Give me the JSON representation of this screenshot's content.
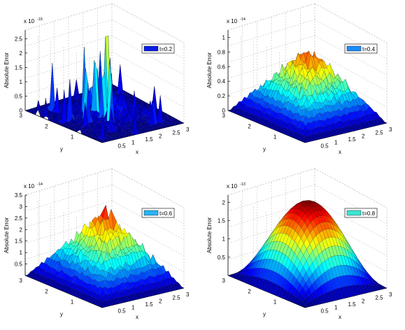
{
  "colors": {
    "axis": "#000000",
    "grid": "#b4b4b4",
    "background": "#ffffff"
  },
  "chart_data": [
    {
      "type": "surface",
      "surface_shape": "noisy-spikes",
      "scale_exponent": "-15",
      "zlabel": "Absolute Error",
      "xlabel": "x",
      "ylabel": "y",
      "xticks": [
        "0.5",
        "1",
        "1.5",
        "2",
        "2.5",
        "3"
      ],
      "yticks": [
        "1",
        "2",
        "3"
      ],
      "zticks": [
        "0",
        "0.5",
        "1",
        "1.5",
        "2",
        "2.5"
      ],
      "zlim": [
        0,
        2.8
      ],
      "legend": {
        "label": "t=0.2",
        "color": "#0a1ee6"
      },
      "peak": 2.9,
      "grid": true
    },
    {
      "type": "surface",
      "surface_shape": "noisy-pyramid",
      "scale_exponent": "-14",
      "zlabel": "Absolute Error",
      "xlabel": "x",
      "ylabel": "y",
      "xticks": [
        "0.5",
        "1",
        "1.5",
        "2",
        "2.5",
        "3"
      ],
      "yticks": [
        "1",
        "2",
        "3"
      ],
      "zticks": [
        "0",
        "0.2",
        "0.4",
        "0.6",
        "0.8",
        "1"
      ],
      "zlim": [
        0,
        1.1
      ],
      "legend": {
        "label": "t=0.4",
        "color": "#1e8cff"
      },
      "peak": 1.05,
      "grid": true
    },
    {
      "type": "surface",
      "surface_shape": "noisy-pyramid",
      "scale_exponent": "-14",
      "zlabel": "Absolute Error",
      "xlabel": "x",
      "ylabel": "y",
      "xticks": [
        "0.5",
        "1",
        "1.5",
        "2",
        "2.5",
        "3"
      ],
      "yticks": [
        "1",
        "2",
        "3"
      ],
      "zticks": [
        "0.5",
        "1",
        "1.5",
        "2",
        "2.5",
        "3",
        "3.5"
      ],
      "zlim": [
        0,
        3.5
      ],
      "legend": {
        "label": "t=0.6",
        "color": "#28b4f5"
      },
      "peak": 3.45,
      "grid": true
    },
    {
      "type": "surface",
      "surface_shape": "smooth-bump",
      "scale_exponent": "-13",
      "zlabel": "Absolute Error",
      "xlabel": "x",
      "ylabel": "y",
      "xticks": [
        "0.5",
        "1",
        "1.5",
        "2",
        "2.5",
        "3"
      ],
      "yticks": [
        "1",
        "2",
        "3"
      ],
      "zticks": [
        "0.5",
        "1",
        "1.5",
        "2"
      ],
      "zlim": [
        0,
        2.2
      ],
      "legend": {
        "label": "t=0.8",
        "color": "#3ce6d2"
      },
      "peak": 2.15,
      "grid": true
    }
  ]
}
